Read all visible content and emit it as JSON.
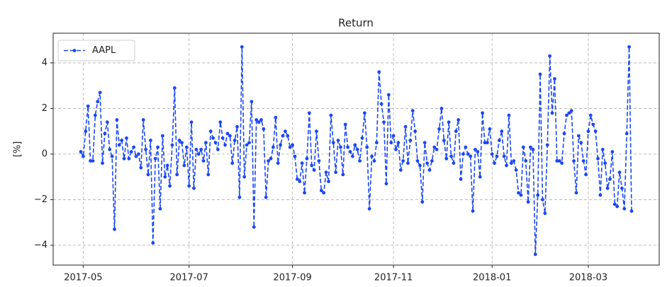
{
  "chart_data": {
    "type": "line",
    "title": "Return",
    "y_label": "[%]",
    "xlim": [
      -11.5,
      240.5
    ],
    "xticks": [
      {
        "value": 1,
        "label": "2017-05"
      },
      {
        "value": 45,
        "label": "2017-07"
      },
      {
        "value": 88,
        "label": "2017-09"
      },
      {
        "value": 130,
        "label": "2017-11"
      },
      {
        "value": 171,
        "label": "2018-01"
      },
      {
        "value": 211,
        "label": "2018-03"
      }
    ],
    "ylim": [
      -4.87,
      5.3
    ],
    "yticks": [
      {
        "value": -4,
        "label": "−4"
      },
      {
        "value": -2,
        "label": "−2"
      },
      0,
      2,
      4
    ],
    "grid": true,
    "legend": "upper left",
    "series": [
      {
        "name": "AAPL",
        "color": "#1a47f5",
        "values": [
          0.1,
          -0.1,
          1.0,
          2.1,
          -0.3,
          -0.3,
          1.7,
          2.3,
          2.7,
          -0.4,
          0.9,
          1.4,
          0.2,
          -0.1,
          -3.3,
          1.5,
          0.4,
          0.6,
          -0.2,
          0.7,
          -0.2,
          0.1,
          0.3,
          -0.1,
          0.0,
          -0.6,
          1.5,
          0.2,
          -0.9,
          0.6,
          -3.9,
          -0.2,
          0.3,
          -2.4,
          0.8,
          -1.0,
          -0.5,
          -1.4,
          0.4,
          2.9,
          -0.9,
          0.6,
          0.5,
          -0.5,
          0.3,
          -1.4,
          1.4,
          -1.5,
          0.2,
          0.0,
          0.2,
          -0.3,
          0.5,
          -0.9,
          1.0,
          0.7,
          0.5,
          0.2,
          1.4,
          0.7,
          0.4,
          0.9,
          0.8,
          -0.4,
          0.6,
          1.2,
          -1.9,
          4.7,
          -1.0,
          0.4,
          0.5,
          2.3,
          -3.2,
          1.5,
          1.4,
          1.5,
          1.1,
          -1.9,
          -0.3,
          -0.2,
          0.3,
          1.6,
          -0.4,
          0.4,
          0.8,
          1.0,
          0.8,
          0.3,
          0.4,
          -0.1,
          -1.1,
          -1.2,
          -0.4,
          -1.7,
          -0.2,
          1.8,
          -0.5,
          -0.7,
          1.0,
          -0.3,
          -1.6,
          -1.7,
          -0.8,
          -1.2,
          1.7,
          0.5,
          -0.8,
          0.6,
          0.3,
          -0.9,
          1.3,
          0.3,
          0.1,
          -0.1,
          0.4,
          0.2,
          -0.3,
          0.7,
          1.8,
          0.3,
          -2.4,
          -0.1,
          -0.3,
          0.5,
          3.6,
          2.2,
          1.4,
          -1.3,
          2.6,
          0.5,
          0.8,
          0.2,
          0.5,
          -0.7,
          -0.3,
          1.2,
          -0.4,
          0.6,
          1.9,
          1.0,
          -0.3,
          -0.5,
          -2.1,
          0.5,
          -0.4,
          -0.7,
          -0.3,
          0.3,
          0.2,
          1.1,
          2.0,
          0.6,
          -0.2,
          1.4,
          -0.1,
          -0.4,
          1.0,
          1.5,
          -1.1,
          0.0,
          0.3,
          0.0,
          -0.1,
          -2.5,
          0.2,
          0.1,
          -1.0,
          1.8,
          0.5,
          0.5,
          1.1,
          0.0,
          -0.4,
          -0.1,
          0.6,
          1.0,
          -0.1,
          -0.5,
          1.7,
          -0.4,
          -0.3,
          -0.7,
          -1.7,
          -1.8,
          0.3,
          -0.3,
          -2.1,
          0.3,
          0.2,
          -4.4,
          -1.8,
          3.5,
          -2.0,
          -2.6,
          0.4,
          4.3,
          1.8,
          3.3,
          -0.3,
          -0.3,
          -0.4,
          0.9,
          1.7,
          1.8,
          1.9,
          -0.3,
          -1.7,
          0.8,
          0.5,
          -0.3,
          -0.9,
          1.0,
          1.7,
          1.3,
          1.0,
          -0.2,
          -1.8,
          0.2,
          -0.4,
          -1.5,
          -1.1,
          0.1,
          -2.2,
          -2.3,
          -0.8,
          -1.5,
          -2.4,
          0.9,
          4.7,
          -2.5
        ]
      }
    ]
  }
}
